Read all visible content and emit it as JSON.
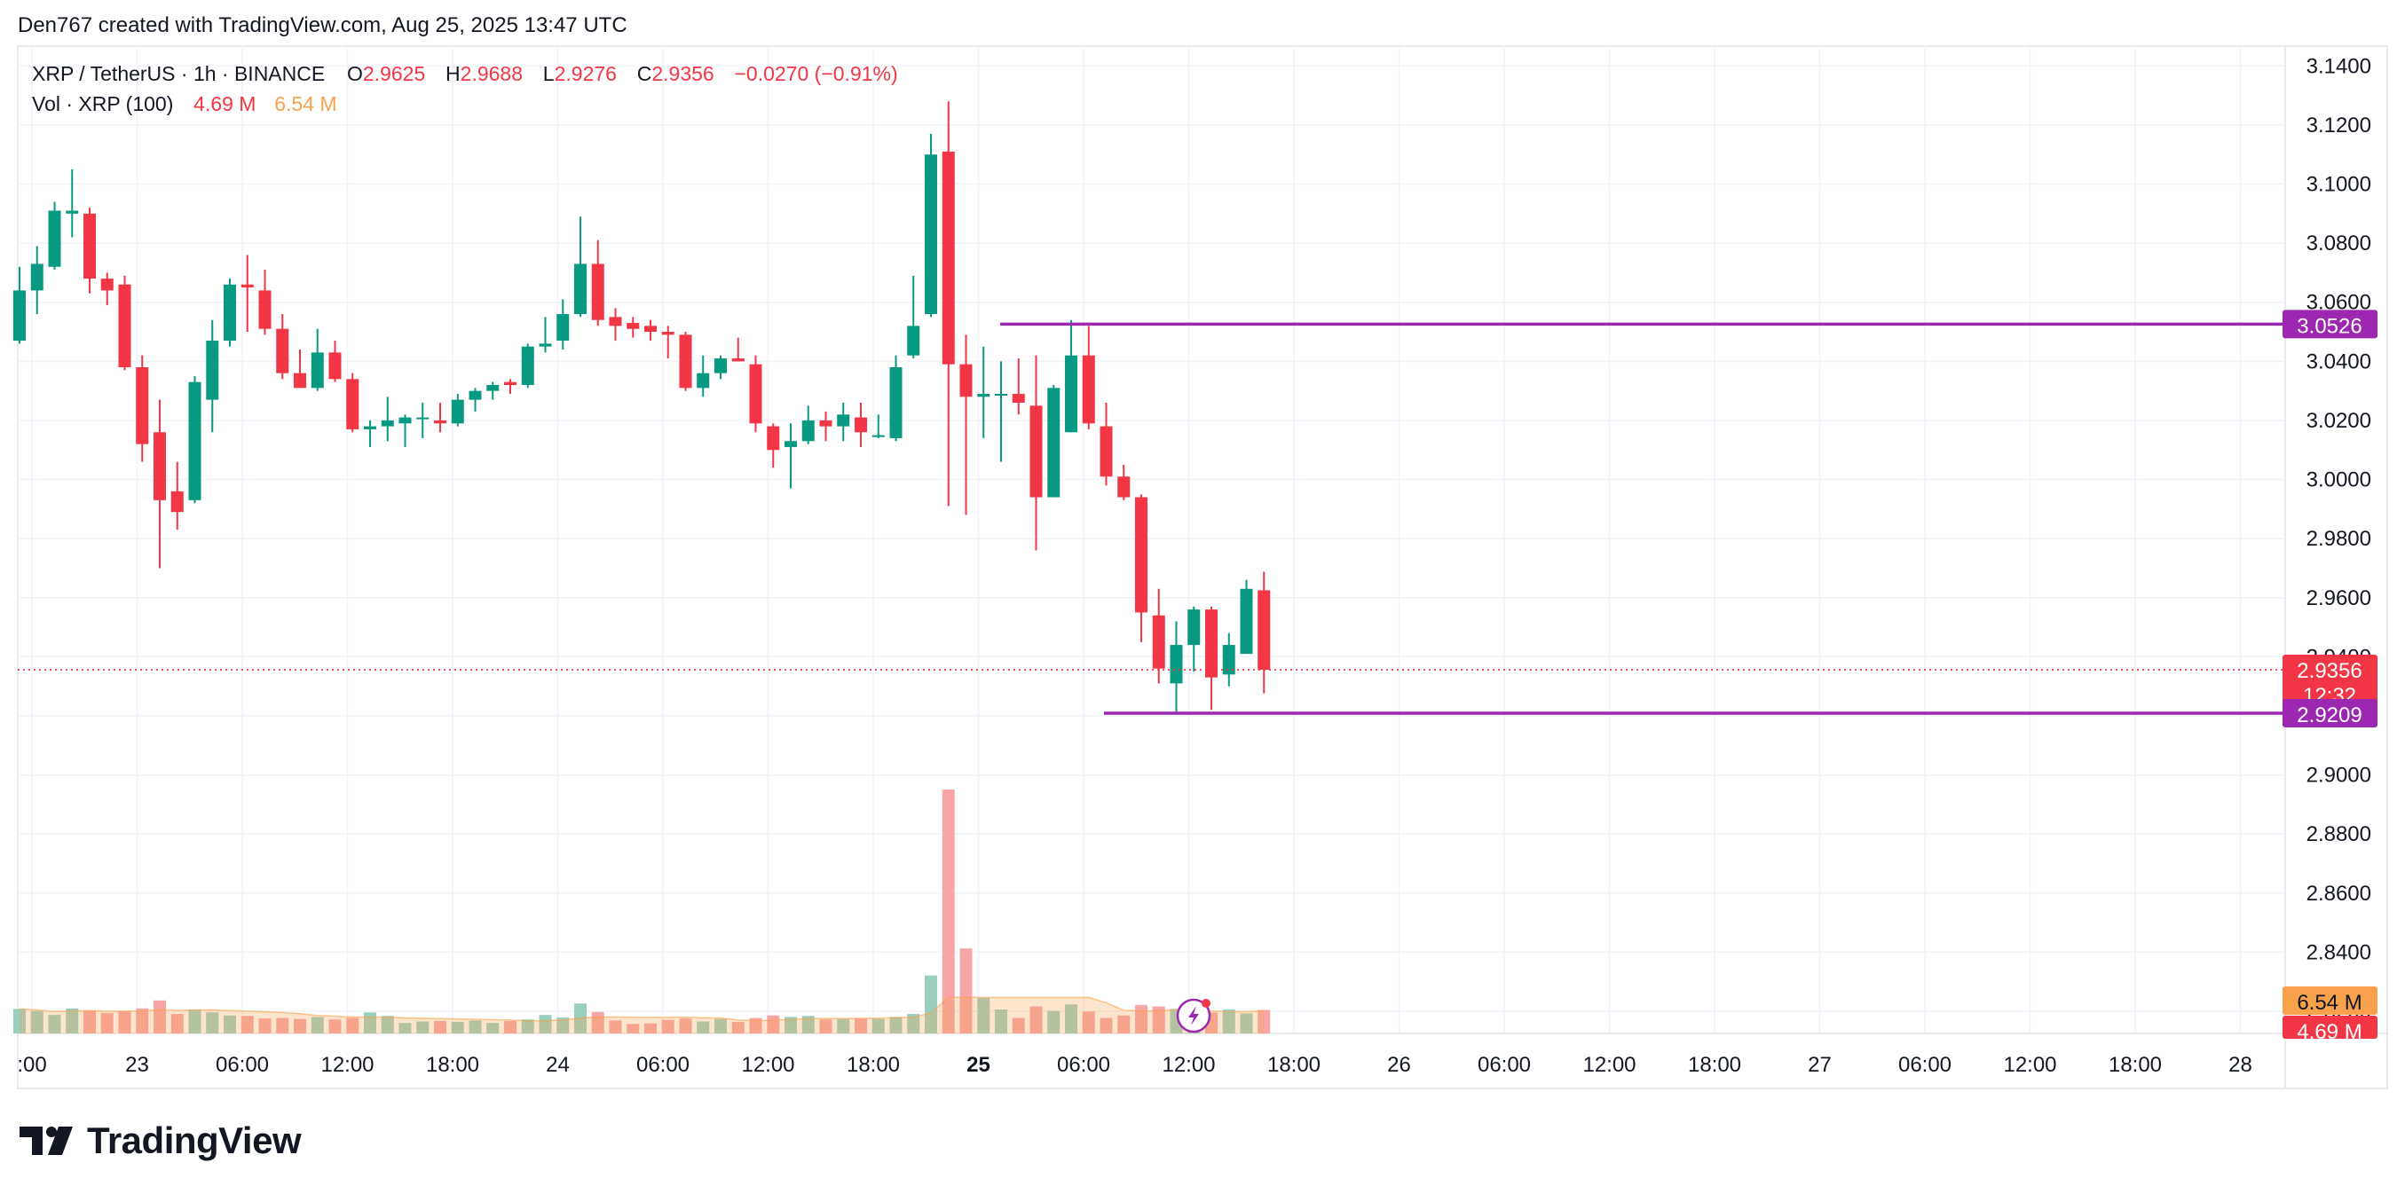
{
  "header": {
    "created_line": "Den767 created with TradingView.com, Aug 25, 2025 13:47 UTC"
  },
  "legend": {
    "symbol": "XRP / TetherUS · 1h · BINANCE",
    "o_label": "O",
    "o_value": "2.9625",
    "h_label": "H",
    "h_value": "2.9688",
    "l_label": "L",
    "l_value": "2.9276",
    "c_label": "C",
    "c_value": "2.9356",
    "change": "−0.0270 (−0.91%)",
    "vol_label": "Vol · XRP (100)",
    "vol_value_1": "4.69 M",
    "vol_value_2": "6.54 M"
  },
  "brand": {
    "name": "TradingView"
  },
  "colors": {
    "up": "#089981",
    "down": "#F23645",
    "level_line": "#9C27B0",
    "price_line": "#F23645",
    "vol_up": "#9ACFBF",
    "vol_down": "#F7A5A5",
    "vol_ma": "#F7A24B",
    "grid": "#F0F3FA"
  },
  "chart_data": {
    "type": "candlestick",
    "symbol": "XRP / TetherUS",
    "interval": "1h",
    "exchange": "BINANCE",
    "y_ticks": [
      "3.1400",
      "3.1200",
      "3.1000",
      "3.0800",
      "3.0600",
      "3.0400",
      "3.0200",
      "3.0000",
      "2.9800",
      "2.9600",
      "2.9400",
      "2.9200",
      "2.9000",
      "2.8800",
      "2.8600",
      "2.8400",
      "2.8200"
    ],
    "ylim": [
      2.8125,
      3.1467
    ],
    "x_ticks": [
      ":00",
      "23",
      "06:00",
      "12:00",
      "18:00",
      "24",
      "06:00",
      "12:00",
      "18:00",
      "25",
      "06:00",
      "12:00",
      "18:00",
      "26",
      "06:00",
      "12:00",
      "18:00",
      "27",
      "06:00",
      "12:00",
      "18:00",
      "28"
    ],
    "x_tick_bold": [
      false,
      false,
      false,
      false,
      false,
      false,
      false,
      false,
      false,
      true,
      false,
      false,
      false,
      false,
      false,
      false,
      false,
      false,
      false,
      false,
      false,
      false
    ],
    "grid": true,
    "candles": [
      {
        "o": 3.047,
        "h": 3.072,
        "l": 3.046,
        "c": 3.064
      },
      {
        "o": 3.064,
        "h": 3.079,
        "l": 3.056,
        "c": 3.073
      },
      {
        "o": 3.072,
        "h": 3.094,
        "l": 3.071,
        "c": 3.091
      },
      {
        "o": 3.09,
        "h": 3.105,
        "l": 3.082,
        "c": 3.091
      },
      {
        "o": 3.09,
        "h": 3.092,
        "l": 3.063,
        "c": 3.068
      },
      {
        "o": 3.068,
        "h": 3.07,
        "l": 3.059,
        "c": 3.064
      },
      {
        "o": 3.066,
        "h": 3.069,
        "l": 3.037,
        "c": 3.038
      },
      {
        "o": 3.038,
        "h": 3.042,
        "l": 3.006,
        "c": 3.012
      },
      {
        "o": 3.016,
        "h": 3.027,
        "l": 2.97,
        "c": 2.993
      },
      {
        "o": 2.996,
        "h": 3.006,
        "l": 2.983,
        "c": 2.989
      },
      {
        "o": 2.993,
        "h": 3.035,
        "l": 2.992,
        "c": 3.033
      },
      {
        "o": 3.027,
        "h": 3.054,
        "l": 3.016,
        "c": 3.047
      },
      {
        "o": 3.047,
        "h": 3.068,
        "l": 3.045,
        "c": 3.066
      },
      {
        "o": 3.066,
        "h": 3.076,
        "l": 3.05,
        "c": 3.065
      },
      {
        "o": 3.064,
        "h": 3.071,
        "l": 3.049,
        "c": 3.051
      },
      {
        "o": 3.051,
        "h": 3.056,
        "l": 3.034,
        "c": 3.036
      },
      {
        "o": 3.036,
        "h": 3.044,
        "l": 3.031,
        "c": 3.031
      },
      {
        "o": 3.031,
        "h": 3.051,
        "l": 3.03,
        "c": 3.043
      },
      {
        "o": 3.043,
        "h": 3.047,
        "l": 3.033,
        "c": 3.034
      },
      {
        "o": 3.034,
        "h": 3.036,
        "l": 3.016,
        "c": 3.017
      },
      {
        "o": 3.017,
        "h": 3.02,
        "l": 3.011,
        "c": 3.018
      },
      {
        "o": 3.018,
        "h": 3.028,
        "l": 3.013,
        "c": 3.02
      },
      {
        "o": 3.019,
        "h": 3.022,
        "l": 3.011,
        "c": 3.021
      },
      {
        "o": 3.021,
        "h": 3.026,
        "l": 3.014,
        "c": 3.021
      },
      {
        "o": 3.02,
        "h": 3.026,
        "l": 3.016,
        "c": 3.019
      },
      {
        "o": 3.019,
        "h": 3.029,
        "l": 3.018,
        "c": 3.027
      },
      {
        "o": 3.027,
        "h": 3.031,
        "l": 3.023,
        "c": 3.03
      },
      {
        "o": 3.03,
        "h": 3.033,
        "l": 3.027,
        "c": 3.032
      },
      {
        "o": 3.033,
        "h": 3.034,
        "l": 3.029,
        "c": 3.032
      },
      {
        "o": 3.032,
        "h": 3.046,
        "l": 3.031,
        "c": 3.045
      },
      {
        "o": 3.045,
        "h": 3.055,
        "l": 3.043,
        "c": 3.046
      },
      {
        "o": 3.047,
        "h": 3.061,
        "l": 3.044,
        "c": 3.056
      },
      {
        "o": 3.056,
        "h": 3.089,
        "l": 3.055,
        "c": 3.073
      },
      {
        "o": 3.073,
        "h": 3.081,
        "l": 3.052,
        "c": 3.054
      },
      {
        "o": 3.055,
        "h": 3.058,
        "l": 3.047,
        "c": 3.052
      },
      {
        "o": 3.053,
        "h": 3.055,
        "l": 3.048,
        "c": 3.051
      },
      {
        "o": 3.052,
        "h": 3.054,
        "l": 3.047,
        "c": 3.05
      },
      {
        "o": 3.05,
        "h": 3.052,
        "l": 3.041,
        "c": 3.049
      },
      {
        "o": 3.049,
        "h": 3.05,
        "l": 3.03,
        "c": 3.031
      },
      {
        "o": 3.031,
        "h": 3.042,
        "l": 3.028,
        "c": 3.036
      },
      {
        "o": 3.036,
        "h": 3.042,
        "l": 3.034,
        "c": 3.041
      },
      {
        "o": 3.041,
        "h": 3.048,
        "l": 3.04,
        "c": 3.04
      },
      {
        "o": 3.039,
        "h": 3.042,
        "l": 3.016,
        "c": 3.019
      },
      {
        "o": 3.018,
        "h": 3.019,
        "l": 3.004,
        "c": 3.01
      },
      {
        "o": 3.011,
        "h": 3.019,
        "l": 2.997,
        "c": 3.013
      },
      {
        "o": 3.013,
        "h": 3.025,
        "l": 3.012,
        "c": 3.02
      },
      {
        "o": 3.02,
        "h": 3.023,
        "l": 3.013,
        "c": 3.018
      },
      {
        "o": 3.018,
        "h": 3.026,
        "l": 3.013,
        "c": 3.022
      },
      {
        "o": 3.021,
        "h": 3.026,
        "l": 3.011,
        "c": 3.016
      },
      {
        "o": 3.015,
        "h": 3.022,
        "l": 3.014,
        "c": 3.015
      },
      {
        "o": 3.014,
        "h": 3.042,
        "l": 3.013,
        "c": 3.038
      },
      {
        "o": 3.042,
        "h": 3.069,
        "l": 3.041,
        "c": 3.052
      },
      {
        "o": 3.056,
        "h": 3.117,
        "l": 3.055,
        "c": 3.11
      },
      {
        "o": 3.111,
        "h": 3.128,
        "l": 2.991,
        "c": 3.039
      },
      {
        "o": 3.039,
        "h": 3.049,
        "l": 2.988,
        "c": 3.028
      },
      {
        "o": 3.028,
        "h": 3.045,
        "l": 3.014,
        "c": 3.029
      },
      {
        "o": 3.029,
        "h": 3.04,
        "l": 3.006,
        "c": 3.029
      },
      {
        "o": 3.029,
        "h": 3.041,
        "l": 3.022,
        "c": 3.026
      },
      {
        "o": 3.025,
        "h": 3.042,
        "l": 2.976,
        "c": 2.994
      },
      {
        "o": 2.994,
        "h": 3.032,
        "l": 2.994,
        "c": 3.031
      },
      {
        "o": 3.016,
        "h": 3.054,
        "l": 3.016,
        "c": 3.042
      },
      {
        "o": 3.042,
        "h": 3.052,
        "l": 3.017,
        "c": 3.019
      },
      {
        "o": 3.018,
        "h": 3.026,
        "l": 2.998,
        "c": 3.001
      },
      {
        "o": 3.001,
        "h": 3.005,
        "l": 2.993,
        "c": 2.994
      },
      {
        "o": 2.994,
        "h": 2.995,
        "l": 2.945,
        "c": 2.955
      },
      {
        "o": 2.954,
        "h": 2.963,
        "l": 2.931,
        "c": 2.936
      },
      {
        "o": 2.931,
        "h": 2.952,
        "l": 2.921,
        "c": 2.944
      },
      {
        "o": 2.944,
        "h": 2.957,
        "l": 2.935,
        "c": 2.956
      },
      {
        "o": 2.956,
        "h": 2.957,
        "l": 2.922,
        "c": 2.933
      },
      {
        "o": 2.934,
        "h": 2.948,
        "l": 2.93,
        "c": 2.944
      },
      {
        "o": 2.941,
        "h": 2.966,
        "l": 2.941,
        "c": 2.963
      },
      {
        "o": 2.9625,
        "h": 2.9688,
        "l": 2.9276,
        "c": 2.9356
      }
    ],
    "volume": [
      4.9,
      4.5,
      3.7,
      5.0,
      4.6,
      4.1,
      4.4,
      5.0,
      6.6,
      3.9,
      4.8,
      4.2,
      3.6,
      3.5,
      3.0,
      3.1,
      2.9,
      3.3,
      2.8,
      3.1,
      4.2,
      3.5,
      2.1,
      2.4,
      2.5,
      2.3,
      2.6,
      2.1,
      2.5,
      2.8,
      3.7,
      3.2,
      6.0,
      4.3,
      2.6,
      1.9,
      2.0,
      2.7,
      3.0,
      2.4,
      2.9,
      2.3,
      3.1,
      3.6,
      3.3,
      3.5,
      2.8,
      2.9,
      3.0,
      2.9,
      3.3,
      3.9,
      11.6,
      48.8,
      17.0,
      7.1,
      4.8,
      3.1,
      5.4,
      4.5,
      5.8,
      4.4,
      3.1,
      3.6,
      5.7,
      5.4,
      4.9,
      3.4,
      4.2,
      4.8,
      4.0,
      4.7
    ],
    "volume_ma_series": {
      "name": "6.54 M"
    },
    "levels": [
      {
        "value": 3.0526,
        "label": "3.0526"
      },
      {
        "value": 2.9209,
        "label": "2.9209"
      }
    ],
    "last_price": {
      "value": 2.9356,
      "label": "2.9356",
      "countdown": "12:32"
    },
    "volume_labels": {
      "ma": "6.54 M",
      "last": "4.69 M"
    }
  }
}
